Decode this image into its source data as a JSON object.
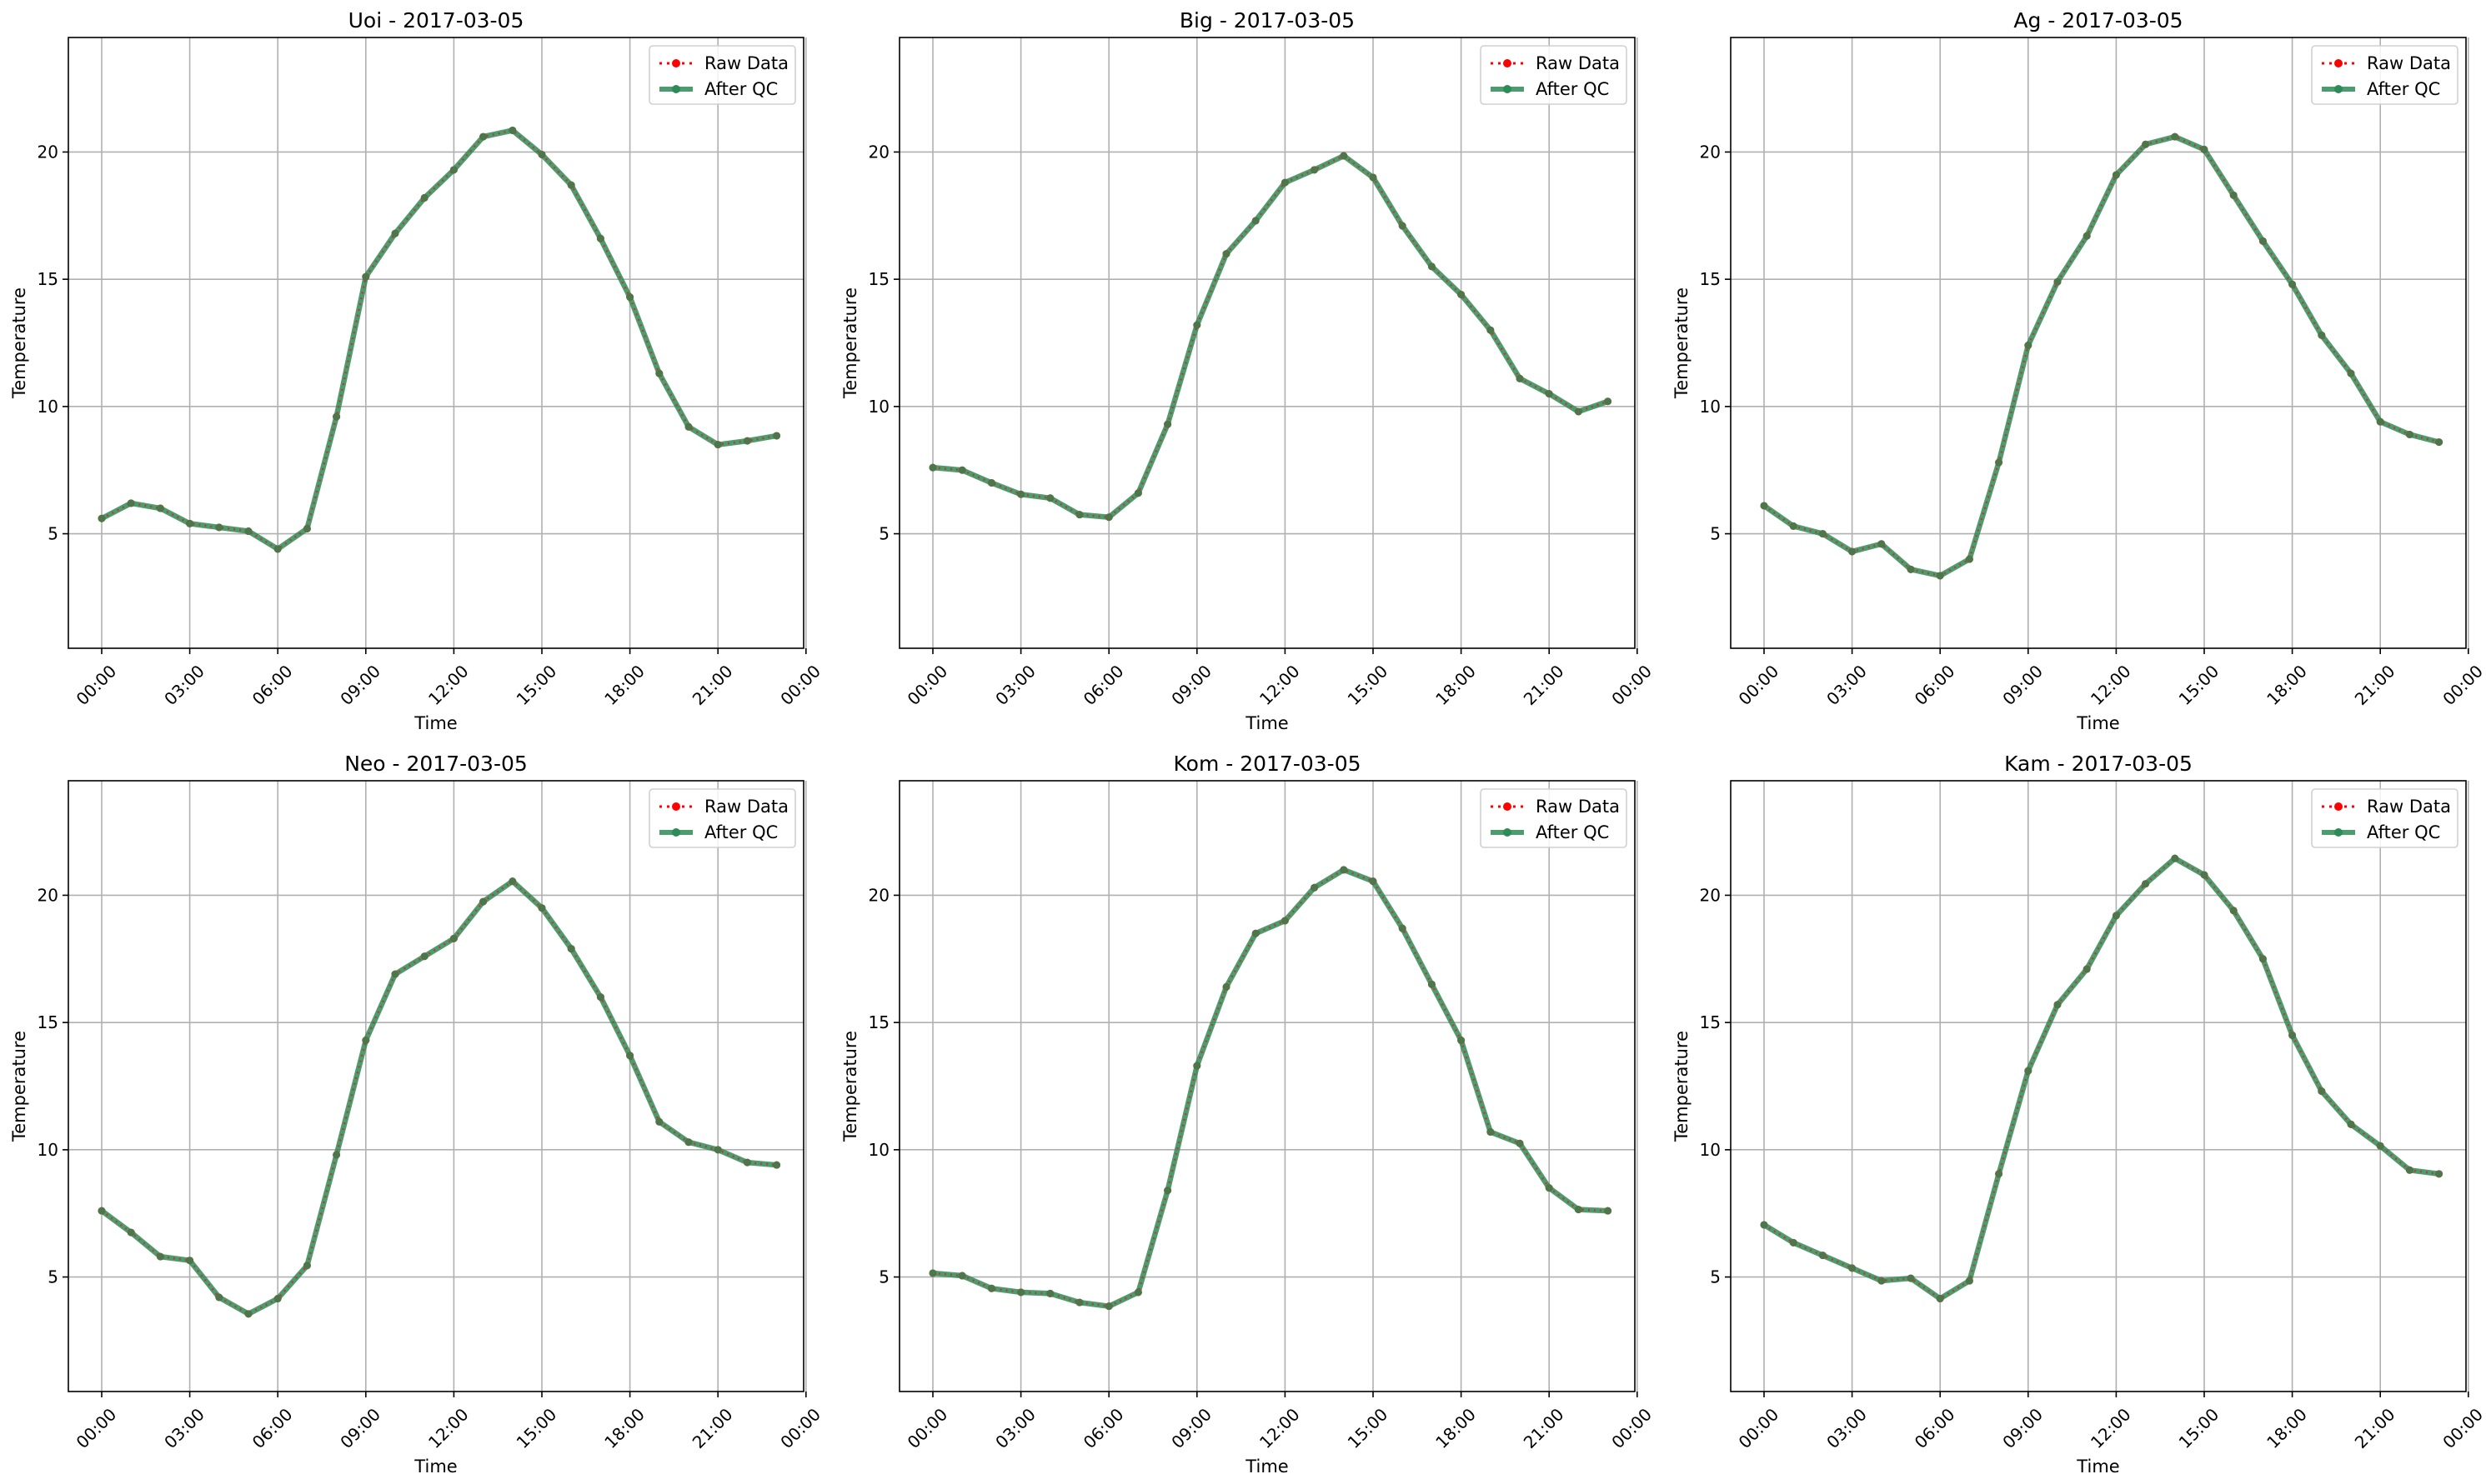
{
  "figure": {
    "x_ticks": [
      "00:00",
      "03:00",
      "06:00",
      "09:00",
      "12:00",
      "15:00",
      "18:00",
      "21:00",
      "00:00"
    ],
    "y_ticks": [
      5,
      10,
      15,
      20
    ]
  },
  "chart_data": [
    {
      "type": "line",
      "title": "Uoi - 2017-03-05",
      "xlabel": "Time",
      "ylabel": "Temperature",
      "x": [
        "00:00",
        "01:00",
        "02:00",
        "03:00",
        "04:00",
        "05:00",
        "06:00",
        "07:00",
        "08:00",
        "09:00",
        "10:00",
        "11:00",
        "12:00",
        "13:00",
        "14:00",
        "15:00",
        "16:00",
        "17:00",
        "18:00",
        "19:00",
        "20:00",
        "21:00",
        "22:00",
        "23:00"
      ],
      "xlim": [
        "00:00",
        "24:00"
      ],
      "ylim": [
        0.5,
        24.5
      ],
      "grid": true,
      "legend": "top-right",
      "series": [
        {
          "name": "Raw Data",
          "color": "#ff0000",
          "values": [
            5.6,
            6.2,
            6.0,
            5.4,
            5.25,
            5.1,
            4.4,
            5.2,
            9.6,
            15.1,
            16.8,
            18.2,
            19.3,
            20.6,
            20.85,
            19.9,
            18.7,
            16.6,
            14.3,
            11.3,
            9.2,
            8.5,
            8.65,
            8.85
          ]
        },
        {
          "name": "After QC",
          "color": "#2e8b57",
          "values": [
            5.6,
            6.2,
            6.0,
            5.4,
            5.25,
            5.1,
            4.4,
            5.2,
            9.6,
            15.1,
            16.8,
            18.2,
            19.3,
            20.6,
            20.85,
            19.9,
            18.7,
            16.6,
            14.3,
            11.3,
            9.2,
            8.5,
            8.65,
            8.85
          ]
        }
      ]
    },
    {
      "type": "line",
      "title": "Big - 2017-03-05",
      "xlabel": "Time",
      "ylabel": "Temperature",
      "x": [
        "00:00",
        "01:00",
        "02:00",
        "03:00",
        "04:00",
        "05:00",
        "06:00",
        "07:00",
        "08:00",
        "09:00",
        "10:00",
        "11:00",
        "12:00",
        "13:00",
        "14:00",
        "15:00",
        "16:00",
        "17:00",
        "18:00",
        "19:00",
        "20:00",
        "21:00",
        "22:00",
        "23:00"
      ],
      "xlim": [
        "00:00",
        "24:00"
      ],
      "ylim": [
        0.5,
        24.5
      ],
      "grid": true,
      "legend": "top-right",
      "series": [
        {
          "name": "Raw Data",
          "color": "#ff0000",
          "values": [
            7.6,
            7.5,
            7.0,
            6.55,
            6.4,
            5.75,
            5.65,
            6.6,
            9.3,
            13.2,
            16.0,
            17.3,
            18.8,
            19.3,
            19.85,
            19.0,
            17.1,
            15.5,
            14.4,
            13.0,
            11.1,
            10.5,
            9.8,
            10.2
          ]
        },
        {
          "name": "After QC",
          "color": "#2e8b57",
          "values": [
            7.6,
            7.5,
            7.0,
            6.55,
            6.4,
            5.75,
            5.65,
            6.6,
            9.3,
            13.2,
            16.0,
            17.3,
            18.8,
            19.3,
            19.85,
            19.0,
            17.1,
            15.5,
            14.4,
            13.0,
            11.1,
            10.5,
            9.8,
            10.2
          ]
        }
      ]
    },
    {
      "type": "line",
      "title": "Ag - 2017-03-05",
      "xlabel": "Time",
      "ylabel": "Temperature",
      "x": [
        "00:00",
        "01:00",
        "02:00",
        "03:00",
        "04:00",
        "05:00",
        "06:00",
        "07:00",
        "08:00",
        "09:00",
        "10:00",
        "11:00",
        "12:00",
        "13:00",
        "14:00",
        "15:00",
        "16:00",
        "17:00",
        "18:00",
        "19:00",
        "20:00",
        "21:00",
        "22:00",
        "23:00"
      ],
      "xlim": [
        "00:00",
        "24:00"
      ],
      "ylim": [
        0.5,
        24.5
      ],
      "grid": true,
      "legend": "top-right",
      "series": [
        {
          "name": "Raw Data",
          "color": "#ff0000",
          "values": [
            6.1,
            5.3,
            5.0,
            4.3,
            4.6,
            3.6,
            3.35,
            4.0,
            7.8,
            12.4,
            14.9,
            16.7,
            19.1,
            20.3,
            20.6,
            20.1,
            18.3,
            16.5,
            14.8,
            12.8,
            11.3,
            9.4,
            8.9,
            8.6
          ]
        },
        {
          "name": "After QC",
          "color": "#2e8b57",
          "values": [
            6.1,
            5.3,
            5.0,
            4.3,
            4.6,
            3.6,
            3.35,
            4.0,
            7.8,
            12.4,
            14.9,
            16.7,
            19.1,
            20.3,
            20.6,
            20.1,
            18.3,
            16.5,
            14.8,
            12.8,
            11.3,
            9.4,
            8.9,
            8.6
          ]
        }
      ]
    },
    {
      "type": "line",
      "title": "Neo - 2017-03-05",
      "xlabel": "Time",
      "ylabel": "Temperature",
      "x": [
        "00:00",
        "01:00",
        "02:00",
        "03:00",
        "04:00",
        "05:00",
        "06:00",
        "07:00",
        "08:00",
        "09:00",
        "10:00",
        "11:00",
        "12:00",
        "13:00",
        "14:00",
        "15:00",
        "16:00",
        "17:00",
        "18:00",
        "19:00",
        "20:00",
        "21:00",
        "22:00",
        "23:00"
      ],
      "xlim": [
        "00:00",
        "24:00"
      ],
      "ylim": [
        0.5,
        24.5
      ],
      "grid": true,
      "legend": "top-right",
      "series": [
        {
          "name": "Raw Data",
          "color": "#ff0000",
          "values": [
            7.6,
            6.75,
            5.8,
            5.65,
            4.2,
            3.55,
            4.15,
            5.45,
            9.8,
            14.3,
            16.9,
            17.6,
            18.3,
            19.75,
            20.55,
            19.5,
            17.9,
            16.0,
            13.7,
            11.1,
            10.3,
            10.0,
            9.5,
            9.4
          ]
        },
        {
          "name": "After QC",
          "color": "#2e8b57",
          "values": [
            7.6,
            6.75,
            5.8,
            5.65,
            4.2,
            3.55,
            4.15,
            5.45,
            9.8,
            14.3,
            16.9,
            17.6,
            18.3,
            19.75,
            20.55,
            19.5,
            17.9,
            16.0,
            13.7,
            11.1,
            10.3,
            10.0,
            9.5,
            9.4
          ]
        }
      ]
    },
    {
      "type": "line",
      "title": "Kom - 2017-03-05",
      "xlabel": "Time",
      "ylabel": "Temperature",
      "x": [
        "00:00",
        "01:00",
        "02:00",
        "03:00",
        "04:00",
        "05:00",
        "06:00",
        "07:00",
        "08:00",
        "09:00",
        "10:00",
        "11:00",
        "12:00",
        "13:00",
        "14:00",
        "15:00",
        "16:00",
        "17:00",
        "18:00",
        "19:00",
        "20:00",
        "21:00",
        "22:00",
        "23:00"
      ],
      "xlim": [
        "00:00",
        "24:00"
      ],
      "ylim": [
        0.5,
        24.5
      ],
      "grid": true,
      "legend": "top-right",
      "series": [
        {
          "name": "Raw Data",
          "color": "#ff0000",
          "values": [
            5.15,
            5.05,
            4.55,
            4.4,
            4.35,
            4.0,
            3.85,
            4.4,
            8.4,
            13.3,
            16.4,
            18.5,
            19.0,
            20.3,
            21.0,
            20.55,
            18.7,
            16.5,
            14.3,
            10.7,
            10.25,
            8.5,
            7.65,
            7.6
          ]
        },
        {
          "name": "After QC",
          "color": "#2e8b57",
          "values": [
            5.15,
            5.05,
            4.55,
            4.4,
            4.35,
            4.0,
            3.85,
            4.4,
            8.4,
            13.3,
            16.4,
            18.5,
            19.0,
            20.3,
            21.0,
            20.55,
            18.7,
            16.5,
            14.3,
            10.7,
            10.25,
            8.5,
            7.65,
            7.6
          ]
        }
      ]
    },
    {
      "type": "line",
      "title": "Kam - 2017-03-05",
      "xlabel": "Time",
      "ylabel": "Temperature",
      "x": [
        "00:00",
        "01:00",
        "02:00",
        "03:00",
        "04:00",
        "05:00",
        "06:00",
        "07:00",
        "08:00",
        "09:00",
        "10:00",
        "11:00",
        "12:00",
        "13:00",
        "14:00",
        "15:00",
        "16:00",
        "17:00",
        "18:00",
        "19:00",
        "20:00",
        "21:00",
        "22:00",
        "23:00"
      ],
      "xlim": [
        "00:00",
        "24:00"
      ],
      "ylim": [
        0.5,
        24.5
      ],
      "grid": true,
      "legend": "top-right",
      "series": [
        {
          "name": "Raw Data",
          "color": "#ff0000",
          "values": [
            7.05,
            6.35,
            5.85,
            5.35,
            4.85,
            4.95,
            4.15,
            4.85,
            9.05,
            13.1,
            15.7,
            17.1,
            19.2,
            20.45,
            21.45,
            20.8,
            19.4,
            17.5,
            14.5,
            12.3,
            11.0,
            10.15,
            9.2,
            9.05
          ]
        },
        {
          "name": "After QC",
          "color": "#2e8b57",
          "values": [
            7.05,
            6.35,
            5.85,
            5.35,
            4.85,
            4.95,
            4.15,
            4.85,
            9.05,
            13.1,
            15.7,
            17.1,
            19.2,
            20.45,
            21.45,
            20.8,
            19.4,
            17.5,
            14.5,
            12.3,
            11.0,
            10.15,
            9.2,
            9.05
          ]
        }
      ]
    }
  ]
}
